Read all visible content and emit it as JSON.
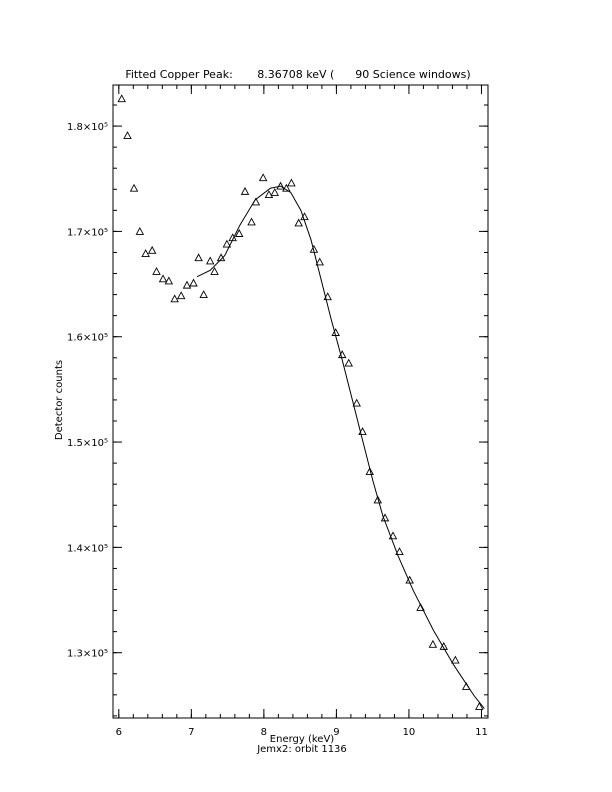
{
  "chart_data": {
    "type": "scatter",
    "title": "Fitted Copper Peak:       8.36708 keV (      90 Science windows)",
    "x_label": "Energy (keV)",
    "x_sublabel": "Jemx2: orbit 1136",
    "y_label": "Detector counts",
    "xlim": [
      5.92,
      11.09
    ],
    "ylim": [
      123800,
      183900
    ],
    "xticks": [
      6,
      7,
      8,
      9,
      10,
      11
    ],
    "yticks": [
      {
        "value": 130000,
        "label": "1.3×10⁵"
      },
      {
        "value": 140000,
        "label": "1.4×10⁵"
      },
      {
        "value": 150000,
        "label": "1.5×10⁵"
      },
      {
        "value": 160000,
        "label": "1.6×10⁵"
      },
      {
        "value": 170000,
        "label": "1.7×10⁵"
      },
      {
        "value": 180000,
        "label": "1.8×10⁵"
      }
    ],
    "series": [
      {
        "name": "data",
        "kind": "points",
        "color": "#000000",
        "x": [
          6.04,
          6.12,
          6.21,
          6.29,
          6.37,
          6.46,
          6.52,
          6.61,
          6.69,
          6.77,
          6.86,
          6.94,
          7.03,
          7.1,
          7.17,
          7.26,
          7.32,
          7.41,
          7.49,
          7.57,
          7.66,
          7.74,
          7.83,
          7.89,
          7.99,
          8.07,
          8.15,
          8.23,
          8.31,
          8.38,
          8.48,
          8.56,
          8.69,
          8.77,
          8.88,
          8.99,
          9.08,
          9.17,
          9.28,
          9.36,
          9.46,
          9.57,
          9.67,
          9.78,
          9.87,
          10.01,
          10.16,
          10.33,
          10.48,
          10.64,
          10.79,
          10.97
        ],
        "values": [
          182600,
          179100,
          174100,
          170000,
          167900,
          168200,
          166200,
          165500,
          165300,
          163600,
          163900,
          164900,
          165100,
          167500,
          164000,
          167200,
          166200,
          167500,
          168800,
          169400,
          169800,
          173800,
          170900,
          172800,
          175100,
          173500,
          173700,
          174300,
          174100,
          174600,
          170800,
          171400,
          168300,
          167100,
          163800,
          160400,
          158300,
          157500,
          153700,
          151000,
          147200,
          144500,
          142800,
          141100,
          139600,
          136900,
          134300,
          130800,
          130600,
          129300,
          126800,
          124900
        ]
      },
      {
        "name": "fit",
        "kind": "line",
        "color": "#000000",
        "x": [
          7.08,
          7.26,
          7.46,
          7.67,
          7.88,
          8.09,
          8.23,
          8.37,
          8.51,
          8.65,
          8.79,
          8.93,
          9.08,
          9.22,
          9.36,
          9.5,
          9.64,
          9.85,
          10.06,
          10.34,
          10.62,
          10.9,
          11.04
        ],
        "values": [
          165700,
          166300,
          167700,
          170600,
          173000,
          174100,
          174300,
          173700,
          172000,
          169200,
          165400,
          161600,
          157800,
          154000,
          150200,
          146400,
          143000,
          139200,
          135900,
          132100,
          128800,
          125900,
          124700
        ]
      }
    ]
  }
}
